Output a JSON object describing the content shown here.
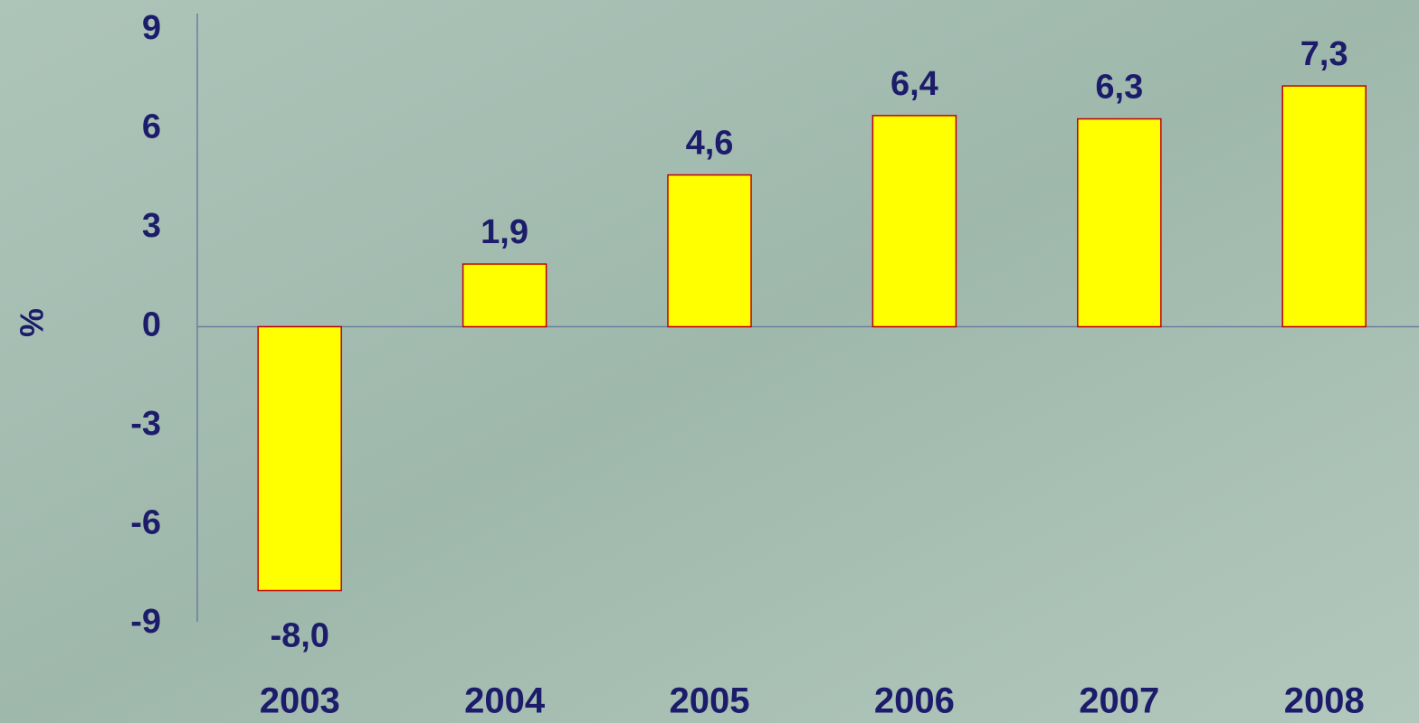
{
  "chart_data": {
    "type": "bar",
    "y_label": "%",
    "categories": [
      "2003",
      "2004",
      "2005",
      "2006",
      "2007",
      "2008"
    ],
    "values": [
      -8.0,
      1.9,
      4.6,
      6.4,
      6.3,
      7.3
    ],
    "value_labels": [
      "-8,0",
      "1,9",
      "4,6",
      "6,4",
      "6,3",
      "7,3"
    ],
    "color": "#ffff00",
    "edge_color": "#c00000",
    "ylim": [
      -9,
      9
    ],
    "yticks": [
      -9,
      -6,
      -3,
      0,
      3,
      6,
      9
    ],
    "grid": false
  }
}
